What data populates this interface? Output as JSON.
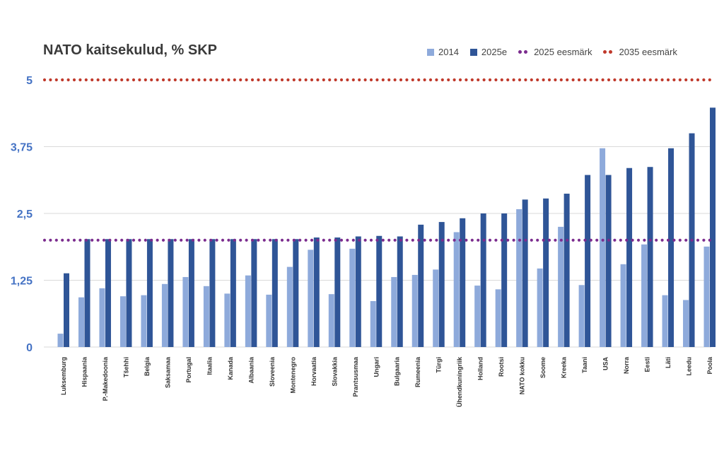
{
  "chart_data": {
    "type": "bar",
    "title": "NATO kaitsekulud, % SKP",
    "categories": [
      "Luksemburg",
      "Hispaania",
      "P.-Makedoonia",
      "Tšehhi",
      "Belgia",
      "Saksamaa",
      "Portugal",
      "Itaalia",
      "Kanada",
      "Albaania",
      "Sloveenia",
      "Montenegro",
      "Horvaatia",
      "Slovakkia",
      "Prantsusmaa",
      "Ungari",
      "Bulgaaria",
      "Rumeenia",
      "Türgi",
      "Ühendkuningriik",
      "Holland",
      "Rootsi",
      "NATO kokku",
      "Soome",
      "Kreeka",
      "Taani",
      "USA",
      "Norra",
      "Eesti",
      "Läti",
      "Leedu",
      "Poola"
    ],
    "series": [
      {
        "name": "2014",
        "color": "#8eaadb",
        "values": [
          0.25,
          0.93,
          1.1,
          0.95,
          0.97,
          1.18,
          1.31,
          1.14,
          1.0,
          1.34,
          0.98,
          1.5,
          1.82,
          0.99,
          1.84,
          0.86,
          1.31,
          1.35,
          1.45,
          2.15,
          1.15,
          1.08,
          2.58,
          1.47,
          2.25,
          1.16,
          3.72,
          1.55,
          1.92,
          0.97,
          0.88,
          1.88
        ]
      },
      {
        "name": "2025e",
        "color": "#2f5597",
        "values": [
          1.38,
          2.02,
          2.02,
          2.02,
          2.02,
          2.02,
          2.02,
          2.02,
          2.02,
          2.02,
          2.02,
          2.02,
          2.05,
          2.05,
          2.07,
          2.08,
          2.07,
          2.29,
          2.34,
          2.41,
          2.5,
          2.5,
          2.76,
          2.78,
          2.87,
          3.22,
          3.22,
          3.35,
          3.37,
          3.72,
          4.0,
          4.48
        ]
      }
    ],
    "reference_lines": [
      {
        "name": "2025 eesmärk",
        "value": 2.0,
        "color": "#7b2c8e"
      },
      {
        "name": "2035 eesmärk",
        "value": 5.0,
        "color": "#c0392b"
      }
    ],
    "yticks": [
      "5",
      "3,75",
      "2,5",
      "1,25",
      "0"
    ],
    "ytick_values": [
      5,
      3.75,
      2.5,
      1.25,
      0
    ],
    "ylim": [
      0,
      5
    ],
    "xlabel": "",
    "ylabel": "",
    "grid": true,
    "legend_position": "top-right"
  },
  "colors": {
    "axis_tick": "#4472c4",
    "grid": "#d9d9d9"
  }
}
